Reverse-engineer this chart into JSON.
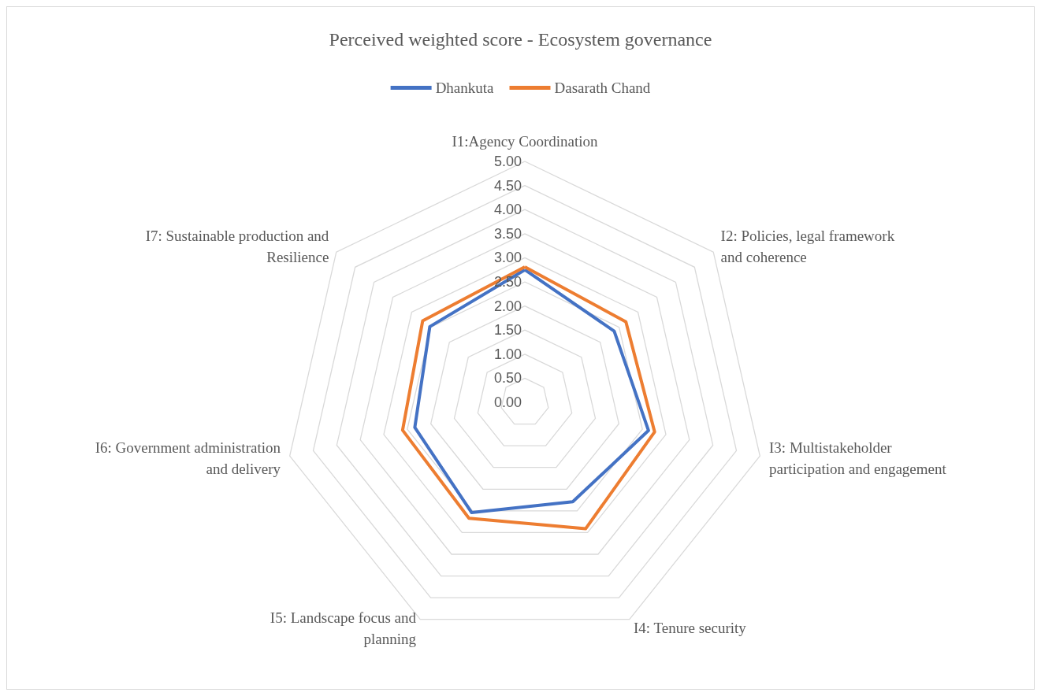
{
  "chart_data": {
    "type": "radar",
    "title": "Perceived weighted score - Ecosystem governance",
    "categories": [
      "I1:Agency Coordination",
      "I2: Policies, legal framework\nand coherence",
      "I3: Multistakeholder\nparticipation and engagement",
      "I4: Tenure security",
      "I5: Landscape focus and\nplanning",
      "I6: Government administration\nand delivery",
      "I7: Sustainable production and\nResilience"
    ],
    "series": [
      {
        "name": "Dhankuta",
        "color": "#4472c4",
        "values": [
          2.75,
          2.37,
          2.63,
          2.29,
          2.54,
          2.34,
          2.52
        ]
      },
      {
        "name": "Dasarath Chand",
        "color": "#ed7d31",
        "values": [
          2.81,
          2.68,
          2.76,
          2.91,
          2.67,
          2.6,
          2.71
        ]
      }
    ],
    "ylim": [
      0,
      5
    ],
    "yticks": [
      {
        "value": 0,
        "label": "0.00"
      },
      {
        "value": 0.5,
        "label": "0.50"
      },
      {
        "value": 1,
        "label": "1.00"
      },
      {
        "value": 1.5,
        "label": "1.50"
      },
      {
        "value": 2,
        "label": "2.00"
      },
      {
        "value": 2.5,
        "label": "2.50"
      },
      {
        "value": 3,
        "label": "3.00"
      },
      {
        "value": 3.5,
        "label": "3.50"
      },
      {
        "value": 4,
        "label": "4.00"
      },
      {
        "value": 4.5,
        "label": "4.50"
      },
      {
        "value": 5,
        "label": "5.00"
      }
    ],
    "grid": true,
    "legend": "top",
    "marker": "none",
    "line_style": "solid"
  }
}
